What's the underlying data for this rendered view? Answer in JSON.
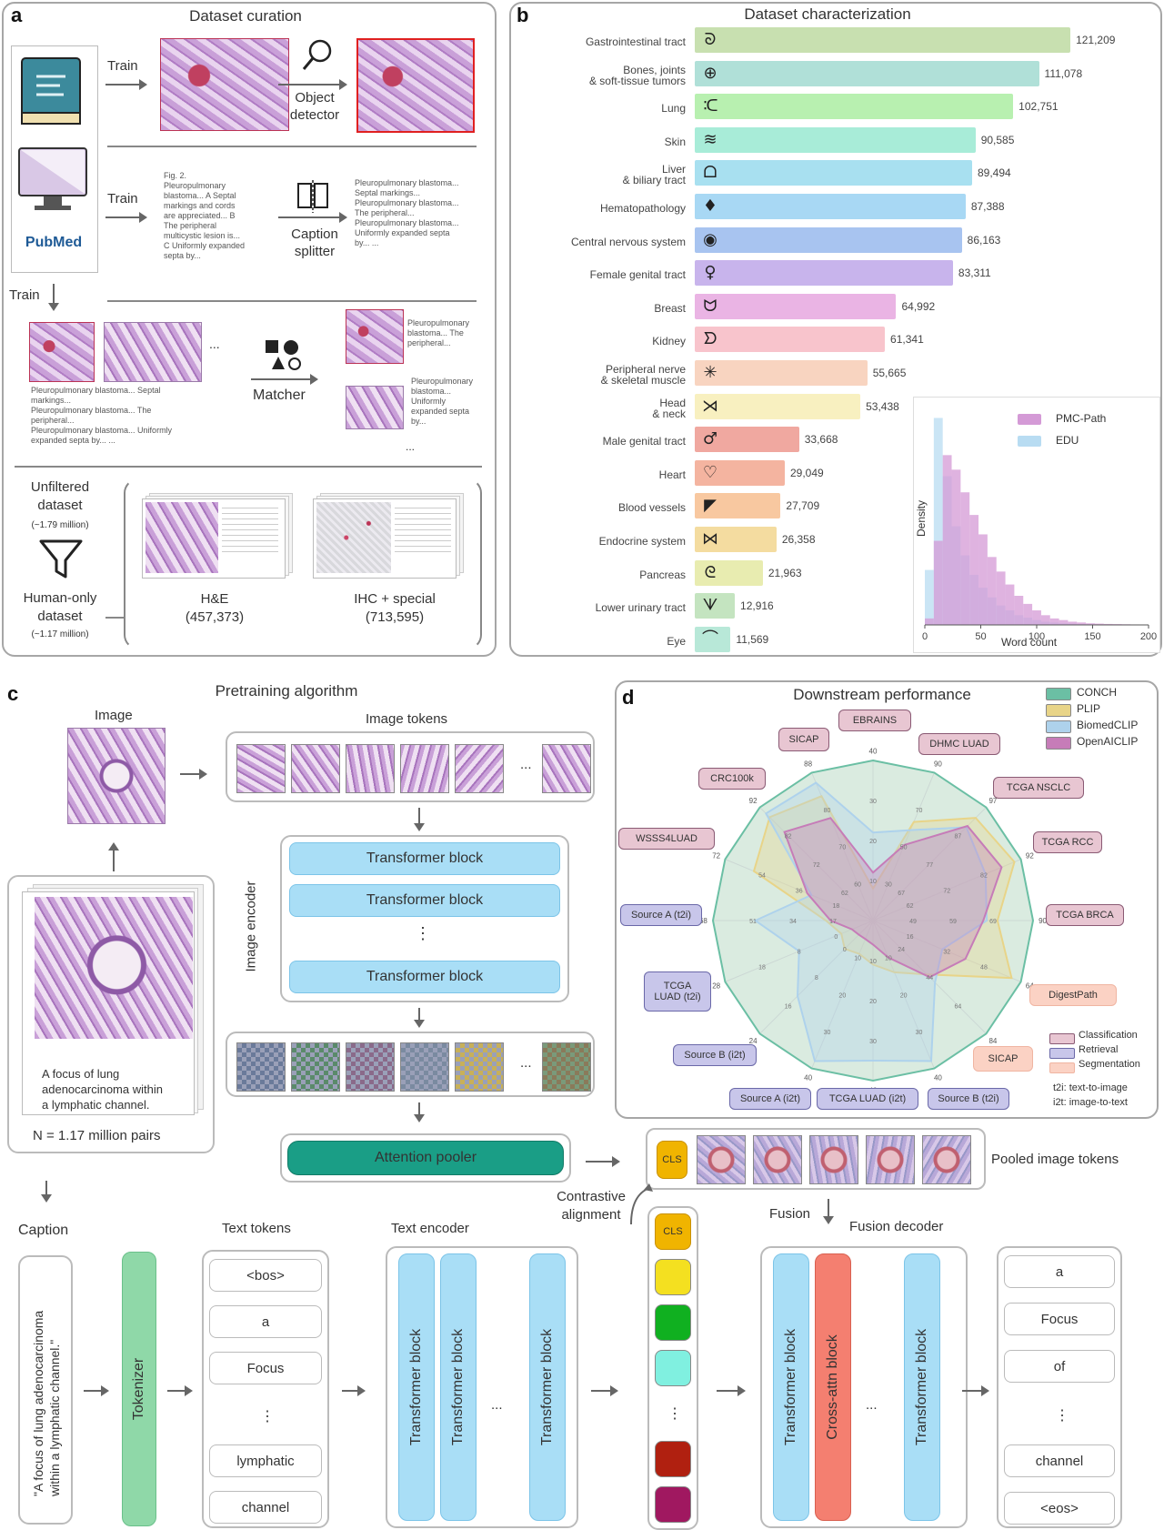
{
  "panel_a": {
    "label": "a",
    "title": "Dataset curation",
    "train1": "Train",
    "object_detector": "Object\ndetector",
    "train2": "Train",
    "caption_text": "Fig. 2.\nPleuropulmonary\nblastoma... A Septal\nmarkings and cords\nare appreciated... B\nThe peripheral\nmulticystic lesion is...\nC Uniformly expanded\nsepta by...",
    "caption_splitter": "Caption\nsplitter",
    "split_text": "Pleuropulmonary blastoma...\nSeptal markings...\nPleuropulmonary blastoma...\nThe peripheral...\nPleuropulmonary blastoma...\nUniformly expanded septa\nby... ...",
    "pubmed": "PubMed",
    "train3": "Train",
    "ellipsis": "...",
    "matcher": "Matcher",
    "matched1": "Pleuropulmonary\nblastoma... The\nperipheral...",
    "matched2": "Pleuropulmonary\nblastoma...\nUniformly\nexpanded septa\nby...",
    "left_captions": "Pleuropulmonary blastoma... Septal\nmarkings...\nPleuropulmonary blastoma... The\nperipheral...\nPleuropulmonary blastoma... Uniformly\nexpanded septa by... ...",
    "unfiltered": "Unfiltered\ndataset",
    "unfiltered_n": "(~1.79 million)",
    "human_only": "Human-only\ndataset",
    "human_only_n": "(~1.17 million)",
    "he_label": "H&E",
    "he_n": "(457,373)",
    "ihc_label": "IHC + special",
    "ihc_n": "(713,595)"
  },
  "panel_b": {
    "label": "b",
    "title": "Dataset characterization"
  },
  "chart_data": [
    {
      "type": "bar",
      "title": "Dataset characterization",
      "orientation": "horizontal",
      "categories": [
        "Gastrointestinal tract",
        "Bones, joints\n& soft-tissue tumors",
        "Lung",
        "Skin",
        "Liver\n& biliary tract",
        "Hematopathology",
        "Central nervous system",
        "Female genital tract",
        "Breast",
        "Kidney",
        "Peripheral nerve\n& skeletal muscle",
        "Head\n& neck",
        "Male genital tract",
        "Heart",
        "Blood vessels",
        "Endocrine system",
        "Pancreas",
        "Lower urinary tract",
        "Eye"
      ],
      "values": [
        121209,
        111078,
        102751,
        90585,
        89494,
        87388,
        86163,
        83311,
        64992,
        61341,
        55665,
        53438,
        33668,
        29049,
        27709,
        26358,
        21963,
        12916,
        11569
      ],
      "value_labels": [
        "121,209",
        "111,078",
        "102,751",
        "90,585",
        "89,494",
        "87,388",
        "86,163",
        "83,311",
        "64,992",
        "61,341",
        "55,665",
        "53,438",
        "33,668",
        "29,049",
        "27,709",
        "26,358",
        "21,963",
        "12,916",
        "11,569"
      ],
      "colors": [
        "#c8e0b0",
        "#b0e0d8",
        "#b8f0b0",
        "#a8ecd8",
        "#a8e0f0",
        "#a8d8f4",
        "#a8c4f0",
        "#c8b4ec",
        "#eab4e4",
        "#f8c4cc",
        "#f8d4c0",
        "#f8f0c0",
        "#f0a8a0",
        "#f4b4a0",
        "#f8c8a0",
        "#f4dca0",
        "#e8ecb0",
        "#c4e4c0",
        "#b8e8d8"
      ],
      "icons": [
        "stomach-icon",
        "joint-icon",
        "lungs-icon",
        "skin-icon",
        "liver-icon",
        "blood-drop-icon",
        "brain-icon",
        "female-symbol-icon",
        "breast-icon",
        "kidney-icon",
        "nerve-icon",
        "head-neck-icon",
        "male-symbol-icon",
        "heart-icon",
        "blood-vessel-icon",
        "endocrine-icon",
        "pancreas-icon",
        "bladder-icon",
        "eye-icon"
      ],
      "icon_glyphs": [
        "ᘐ",
        "⊕",
        "ᑥ",
        "≋",
        "ᗝ",
        "♦",
        "◉",
        "♀",
        "ᗢ",
        "ᗤ",
        "✳",
        "⋊",
        "♂",
        "♡",
        "◤",
        "⋈",
        "ᘓ",
        "ᗐ",
        "⌒"
      ]
    },
    {
      "type": "histogram",
      "xlabel": "Word count",
      "ylabel": "Density",
      "x_ticks": [
        "0",
        "50",
        "100",
        "150",
        "200"
      ],
      "xlim": [
        0,
        200
      ],
      "bin_width": 8,
      "series": [
        {
          "name": "PMC-Path",
          "color": "#d49ad6",
          "values": [
            0.4,
            5.2,
            10.5,
            9.6,
            8.2,
            6.8,
            5.6,
            4.2,
            3.3,
            2.5,
            1.8,
            1.3,
            0.9,
            0.6,
            0.4,
            0.3,
            0.2,
            0.15,
            0.1,
            0.08,
            0.06,
            0.05,
            0.04,
            0.03,
            0.02
          ]
        },
        {
          "name": "EDU",
          "color": "#b8dcf2",
          "values": [
            3.4,
            12.8,
            9.2,
            6.1,
            4.3,
            3.1,
            2.3,
            1.7,
            1.2,
            0.9,
            0.6,
            0.45,
            0.3,
            0.2,
            0.15,
            0.1,
            0.08,
            0.05,
            0.04,
            0.03,
            0.02,
            0.02,
            0.01,
            0.01,
            0.01
          ]
        }
      ]
    },
    {
      "type": "radar",
      "title": "Downstream performance",
      "axes": [
        "EBRAINS",
        "DHMC LUAD",
        "TCGA NSCLC",
        "TCGA RCC",
        "TCGA BRCA",
        "DigestPath",
        "SICAP",
        "Source B (t2i)",
        "TCGA LUAD (i2t)",
        "Source A (i2t)",
        "Source B (i2t)",
        "TCGA LUAD (t2i)",
        "Source A (t2i)",
        "WSSS4LUAD",
        "CRC100k",
        "SICAP"
      ],
      "axis_types": [
        "classification",
        "classification",
        "classification",
        "classification",
        "classification",
        "segmentation",
        "segmentation",
        "retrieval",
        "retrieval",
        "retrieval",
        "retrieval",
        "retrieval",
        "retrieval",
        "classification",
        "classification",
        "classification"
      ],
      "axis_max_labels": [
        "40",
        "90",
        "97",
        "92",
        "90",
        "64",
        "84",
        "40",
        "40",
        "40",
        "24",
        "28",
        "68",
        "72",
        "92",
        "88"
      ],
      "ring_labels": [
        [
          "30",
          "20",
          "10"
        ],
        [
          "70",
          "50",
          "30"
        ],
        [
          "87",
          "77",
          "67"
        ],
        [
          "82",
          "72",
          "62"
        ],
        [
          "69",
          "59",
          "49"
        ],
        [
          "48",
          "32",
          "16"
        ],
        [
          "64",
          "44",
          "24"
        ],
        [
          "30",
          "20",
          "10"
        ],
        [
          "30",
          "20",
          "10"
        ],
        [
          "30",
          "20",
          "10"
        ],
        [
          "16",
          "8",
          "0"
        ],
        [
          "18",
          "8",
          "0"
        ],
        [
          "51",
          "34",
          "17"
        ],
        [
          "54",
          "36",
          "18"
        ],
        [
          "82",
          "72",
          "62"
        ],
        [
          "80",
          "70",
          "60"
        ]
      ],
      "series": [
        {
          "name": "CONCH",
          "color": "#6bbfa4",
          "values": [
            40,
            90,
            97,
            92,
            90,
            64,
            84,
            40,
            40,
            40,
            24,
            28,
            68,
            72,
            92,
            88
          ]
        },
        {
          "name": "PLIP",
          "color": "#e8d488",
          "values": [
            8,
            60,
            88,
            88,
            70,
            60,
            40,
            14,
            11,
            9,
            6,
            6,
            20,
            58,
            84,
            74
          ]
        },
        {
          "name": "BiomedCLIP",
          "color": "#aed2ec",
          "values": [
            22,
            55,
            80,
            70,
            64,
            30,
            46,
            38,
            35,
            38,
            16,
            14,
            50,
            30,
            87,
            82
          ]
        },
        {
          "name": "OpenAICLIP",
          "color": "#c67cb8",
          "values": [
            12,
            46,
            81,
            80,
            62,
            40,
            42,
            10,
            6,
            5,
            3,
            4,
            18,
            32,
            72,
            61
          ]
        }
      ]
    }
  ],
  "histogram_legend": {
    "a": "PMC-Path",
    "b": "EDU"
  },
  "histogram_axis": {
    "xlabel": "Word count",
    "ylabel": "Density"
  },
  "panel_c": {
    "label": "c",
    "title": "Pretraining algorithm",
    "image": "Image",
    "image_tokens": "Image tokens",
    "image_encoder": "Image encoder",
    "tblock": "Transformer block",
    "vdots": "⋮",
    "dots": "...",
    "attention_pooler": "Attention pooler",
    "pooled": "Pooled image tokens",
    "cls": "CLS",
    "caption_card": "A focus of lung\nadenocarcinoma within\na lymphatic channel.",
    "n_pairs": "N = 1.17 million pairs",
    "contrastive": "Contrastive\nalignment",
    "fusion": "Fusion",
    "fusion_decoder": "Fusion decoder",
    "caption": "Caption",
    "caption_text": "\"A focus of lung adenocarcinoma\nwithin a lymphatic channel.\"",
    "tokenizer": "Tokenizer",
    "text_tokens": "Text tokens",
    "text_encoder": "Text encoder",
    "text_tokens_list": [
      "<bos>",
      "a",
      "Focus",
      "⋮",
      "lymphatic",
      "channel"
    ],
    "output_tokens": [
      "a",
      "Focus",
      "of",
      "⋮",
      "channel",
      "<eos>"
    ],
    "cross_attn": "Cross-attn block"
  },
  "panel_d": {
    "label": "d",
    "title": "Downstream performance",
    "legend": [
      "CONCH",
      "PLIP",
      "BiomedCLIP",
      "OpenAICLIP"
    ],
    "task_legend": [
      "Classification",
      "Retrieval",
      "Segmentation"
    ],
    "note1": "t2i: text-to-image",
    "note2": "i2t: image-to-text",
    "tags": {
      "ebrains": "EBRAINS",
      "dhmc": "DHMC LUAD",
      "nsclc": "TCGA NSCLC",
      "rcc": "TCGA RCC",
      "brca": "TCGA BRCA",
      "digest": "DigestPath",
      "sicap_seg": "SICAP",
      "srcb_t2i": "Source B (t2i)",
      "luad_i2t": "TCGA LUAD (i2t)",
      "srca_i2t": "Source A (i2t)",
      "srcb_i2t": "Source B (i2t)",
      "luad_t2i": "TCGA\nLUAD (t2i)",
      "srca_t2i": "Source A (t2i)",
      "wsss": "WSSS4LUAD",
      "crc": "CRC100k",
      "sicap": "SICAP"
    }
  },
  "colors": {
    "conch": "#6bbfa4",
    "plip": "#e8d488",
    "biomed": "#aed2ec",
    "openai": "#c67cb8",
    "transformer": "#a9def6",
    "pooler": "#1a9e86",
    "tokenizer": "#8fd8a8",
    "crossattn": "#f47f70",
    "cls": "#f0b400"
  }
}
